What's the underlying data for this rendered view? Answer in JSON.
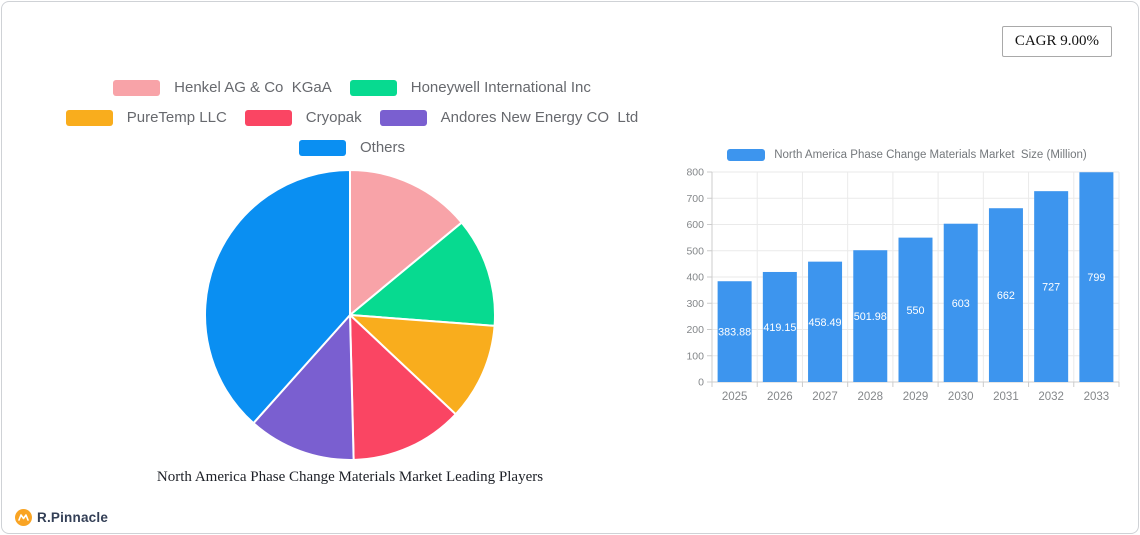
{
  "page": {
    "cagr_label": "CAGR 9.00%",
    "logo_text": "R.Pinnacle",
    "logo_color": "#f9a424"
  },
  "chart_data": [
    {
      "type": "pie",
      "title": "North America Phase Change Materials Market Leading Players",
      "legend_position": "top",
      "start_angle": "12-o'clock",
      "direction": "clockwise",
      "slices": [
        {
          "label": "Henkel AG & Co  KGaA",
          "value": 14.0,
          "color": "#f8a3a8"
        },
        {
          "label": "Honeywell International Inc",
          "value": 12.2,
          "color": "#07da90"
        },
        {
          "label": "PureTemp LLC",
          "value": 10.8,
          "color": "#f9ad1d"
        },
        {
          "label": "Cryopak",
          "value": 12.6,
          "color": "#fa4563"
        },
        {
          "label": "Andores New Energy CO  Ltd",
          "value": 12.0,
          "color": "#7a5fd0"
        },
        {
          "label": "Others",
          "value": 38.4,
          "color": "#0a8ff2"
        }
      ],
      "legend_rows": [
        [
          0,
          1
        ],
        [
          2,
          3,
          4
        ],
        [
          5
        ]
      ],
      "slice_border_color": "#ffffff"
    },
    {
      "type": "bar",
      "series_name": "North America Phase Change Materials Market  Size (Million)",
      "categories": [
        "2025",
        "2026",
        "2027",
        "2028",
        "2029",
        "2030",
        "2031",
        "2032",
        "2033"
      ],
      "values": [
        383.88,
        419.15,
        458.49,
        501.98,
        550,
        603,
        662,
        727,
        799
      ],
      "value_labels": [
        "383.88",
        "419.15",
        "458.49",
        "501.98",
        "550",
        "603",
        "662",
        "727",
        "799"
      ],
      "bar_color": "#3d95ee",
      "value_label_color": "#ffffff",
      "xlabel": "",
      "ylabel": "",
      "ylim": [
        0,
        800
      ],
      "y_ticks": [
        0,
        100,
        200,
        300,
        400,
        500,
        600,
        700,
        800
      ],
      "grid": true,
      "legend_position": "top",
      "axis_text_color": "#84878a",
      "gridline_color": "#eaeaea",
      "axis_line_color": "#cccccc"
    }
  ]
}
